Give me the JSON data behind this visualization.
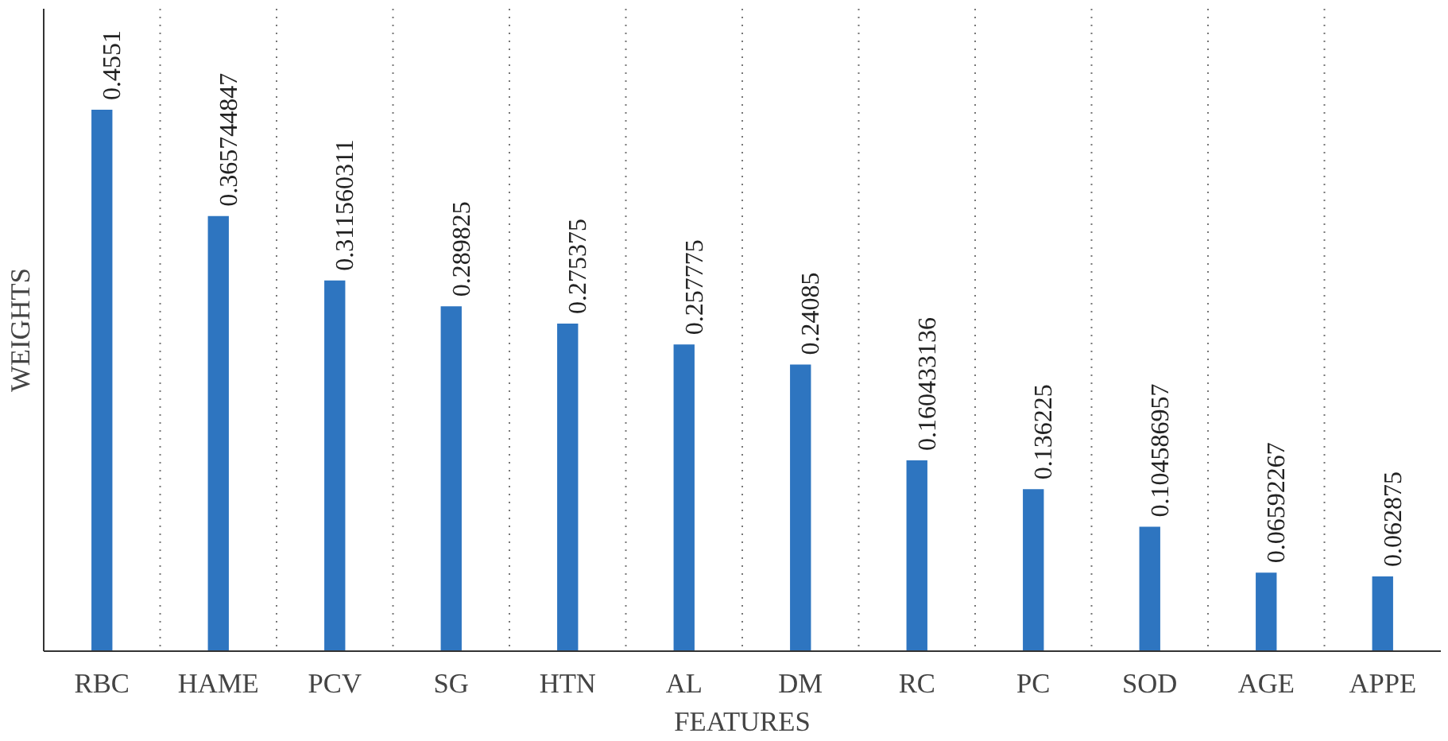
{
  "chart_data": {
    "type": "bar",
    "xlabel": "FEATURES",
    "ylabel": "WEIGHTS",
    "categories": [
      "RBC",
      "HAME",
      "PCV",
      "SG",
      "HTN",
      "AL",
      "DM",
      "RC",
      "PC",
      "SOD",
      "AGE",
      "APPE"
    ],
    "values": [
      0.4551,
      0.365744847,
      0.311560311,
      0.289825,
      0.275375,
      0.257775,
      0.24085,
      0.160433136,
      0.136225,
      0.104586957,
      0.06592267,
      0.062875
    ],
    "color": "#2e75c0",
    "ylim": [
      0,
      0.54
    ],
    "data_labels": true,
    "grid": "x",
    "tick_labels": "x"
  }
}
